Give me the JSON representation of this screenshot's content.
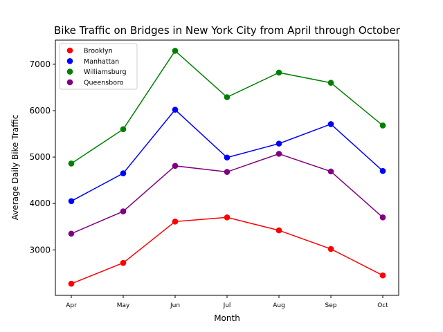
{
  "chart_data": {
    "type": "line",
    "title": "Bike Traffic on Bridges in New York City from April through October",
    "xlabel": "Month",
    "ylabel": "Average Daily Bike Traffic",
    "categories": [
      "Apr",
      "May",
      "Jun",
      "Jul",
      "Aug",
      "Sep",
      "Oct"
    ],
    "ylim": [
      2020,
      7520
    ],
    "yticks": [
      3000,
      4000,
      5000,
      6000,
      7000
    ],
    "grid": false,
    "legend_position": "top-left",
    "series": [
      {
        "name": "Brooklyn",
        "color": "#ff0000",
        "values": [
          2270,
          2720,
          3610,
          3700,
          3420,
          3020,
          2450
        ]
      },
      {
        "name": "Manhattan",
        "color": "#0000ff",
        "values": [
          4050,
          4650,
          6020,
          4990,
          5290,
          5710,
          4700
        ]
      },
      {
        "name": "Williamsburg",
        "color": "#008000",
        "values": [
          4860,
          5600,
          7290,
          6290,
          6820,
          6600,
          5680
        ]
      },
      {
        "name": "Queensboro",
        "color": "#800080",
        "values": [
          3350,
          3830,
          4810,
          4680,
          5070,
          4690,
          3700
        ]
      }
    ]
  }
}
